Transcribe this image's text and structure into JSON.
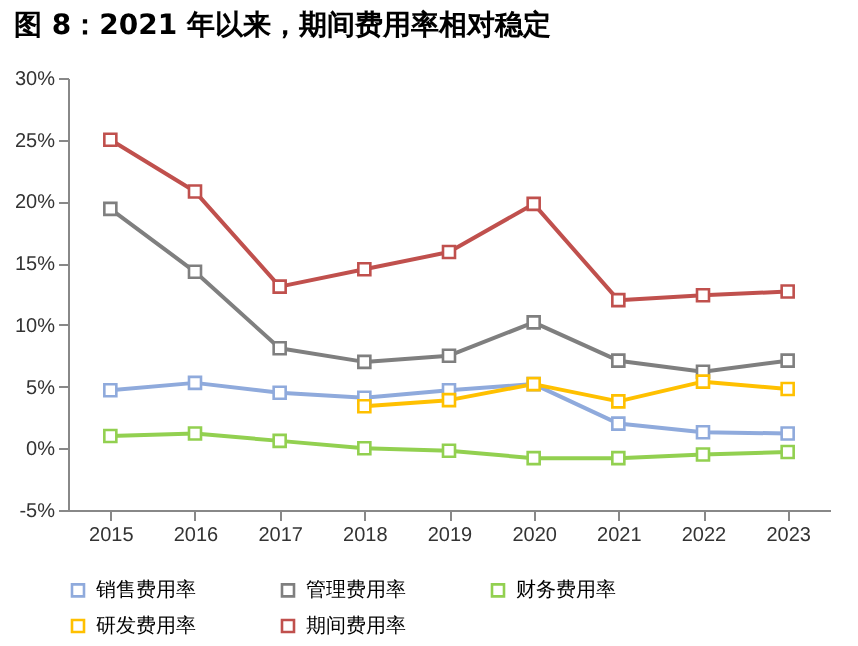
{
  "chart_data": {
    "type": "line",
    "title": "图 8：2021 年以来，期间费用率相对稳定",
    "categories": [
      "2015",
      "2016",
      "2017",
      "2018",
      "2019",
      "2020",
      "2021",
      "2022",
      "2023"
    ],
    "series": [
      {
        "name": "销售费用率",
        "color": "#8faadc",
        "values": [
          4.7,
          5.3,
          4.5,
          4.1,
          4.7,
          5.2,
          2.0,
          1.3,
          1.2
        ]
      },
      {
        "name": "管理费用率",
        "color": "#7f7f7f",
        "values": [
          19.4,
          14.3,
          8.1,
          7.0,
          7.5,
          10.2,
          7.1,
          6.2,
          7.1
        ]
      },
      {
        "name": "财务费用率",
        "color": "#92d050",
        "values": [
          1.0,
          1.2,
          0.6,
          0.0,
          -0.2,
          -0.8,
          -0.8,
          -0.5,
          -0.3
        ]
      },
      {
        "name": "研发费用率",
        "color": "#ffc000",
        "values": [
          null,
          null,
          null,
          3.4,
          3.9,
          5.2,
          3.8,
          5.4,
          4.8
        ]
      },
      {
        "name": "期间费用率",
        "color": "#c0504d",
        "values": [
          25.0,
          20.8,
          13.1,
          14.5,
          15.9,
          19.8,
          12.0,
          12.4,
          12.7
        ]
      }
    ],
    "ylim": [
      -5,
      30
    ],
    "yticks": [
      {
        "value": -5,
        "label": "-5%"
      },
      {
        "value": 0,
        "label": "0%"
      },
      {
        "value": 5,
        "label": "5%"
      },
      {
        "value": 10,
        "label": "10%"
      },
      {
        "value": 15,
        "label": "15%"
      },
      {
        "value": 20,
        "label": "20%"
      },
      {
        "value": 25,
        "label": "25%"
      },
      {
        "value": 30,
        "label": "30%"
      }
    ],
    "grid": false,
    "legend": "bottom",
    "marker": "square",
    "line_style": "solid"
  }
}
